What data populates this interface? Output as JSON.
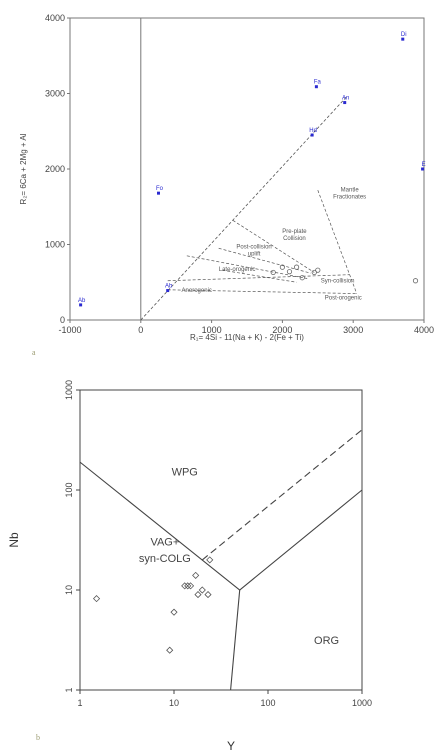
{
  "chart_data": [
    {
      "type": "scatter",
      "panel_label": "a",
      "xlabel": "R₁= 4Si - 11(Na + K) - 2(Fe + Ti)",
      "ylabel": "R₂= 6Ca + 2Mg + Al",
      "xlim": [
        -1000,
        4000
      ],
      "ylim": [
        0,
        4000
      ],
      "xticks": [
        -1000,
        0,
        1000,
        2000,
        3000,
        4000
      ],
      "yticks": [
        0,
        1000,
        2000,
        3000,
        4000
      ],
      "field_labels": [
        {
          "text": "Mantle Fractionates",
          "x": 2950,
          "y": 1700
        },
        {
          "text": "Pre-plate Collision",
          "x": 2170,
          "y": 1150
        },
        {
          "text": "Post-collision uplift",
          "x": 1600,
          "y": 950
        },
        {
          "text": "Late-orogenic",
          "x": 1360,
          "y": 650
        },
        {
          "text": "Syn-collision",
          "x": 2780,
          "y": 500
        },
        {
          "text": "Anorogenic",
          "x": 790,
          "y": 370
        },
        {
          "text": "Post-orogenic",
          "x": 2860,
          "y": 270
        }
      ],
      "mineral_points": [
        {
          "label": "Ab",
          "x": -850,
          "y": 200
        },
        {
          "label": "Fo",
          "x": 250,
          "y": 1680
        },
        {
          "label": "Ab",
          "x": 380,
          "y": 390
        },
        {
          "label": "Fa",
          "x": 2480,
          "y": 3090
        },
        {
          "label": "An",
          "x": 2880,
          "y": 2880
        },
        {
          "label": "Hd",
          "x": 2420,
          "y": 2450
        },
        {
          "label": "Di",
          "x": 3700,
          "y": 3720
        },
        {
          "label": "E",
          "x": 3980,
          "y": 2000
        }
      ],
      "samples": {
        "x": [
          1870,
          2000,
          2100,
          2200,
          2280,
          2450,
          2500,
          3880
        ],
        "y": [
          630,
          700,
          640,
          700,
          560,
          630,
          660,
          520
        ]
      }
    },
    {
      "type": "scatter",
      "panel_label": "b",
      "xlabel": "Y",
      "ylabel": "Nb",
      "scale": "log",
      "xlim": [
        1,
        1000
      ],
      "ylim": [
        1,
        1000
      ],
      "xticks": [
        1,
        10,
        100,
        1000
      ],
      "yticks": [
        1,
        10,
        100,
        1000
      ],
      "field_labels": [
        {
          "text": "WPG",
          "x": 13,
          "y": 140
        },
        {
          "text": "VAG+",
          "x": 8,
          "y": 28
        },
        {
          "text": "syn-COLG",
          "x": 8,
          "y": 19
        },
        {
          "text": "ORG",
          "x": 420,
          "y": 2.9
        }
      ],
      "samples": {
        "x": [
          1.5,
          10,
          9,
          13,
          14,
          15,
          20,
          17,
          18,
          23,
          24
        ],
        "y": [
          8.2,
          6,
          2.5,
          11,
          11,
          11,
          10,
          14,
          9,
          9,
          20
        ]
      }
    }
  ]
}
